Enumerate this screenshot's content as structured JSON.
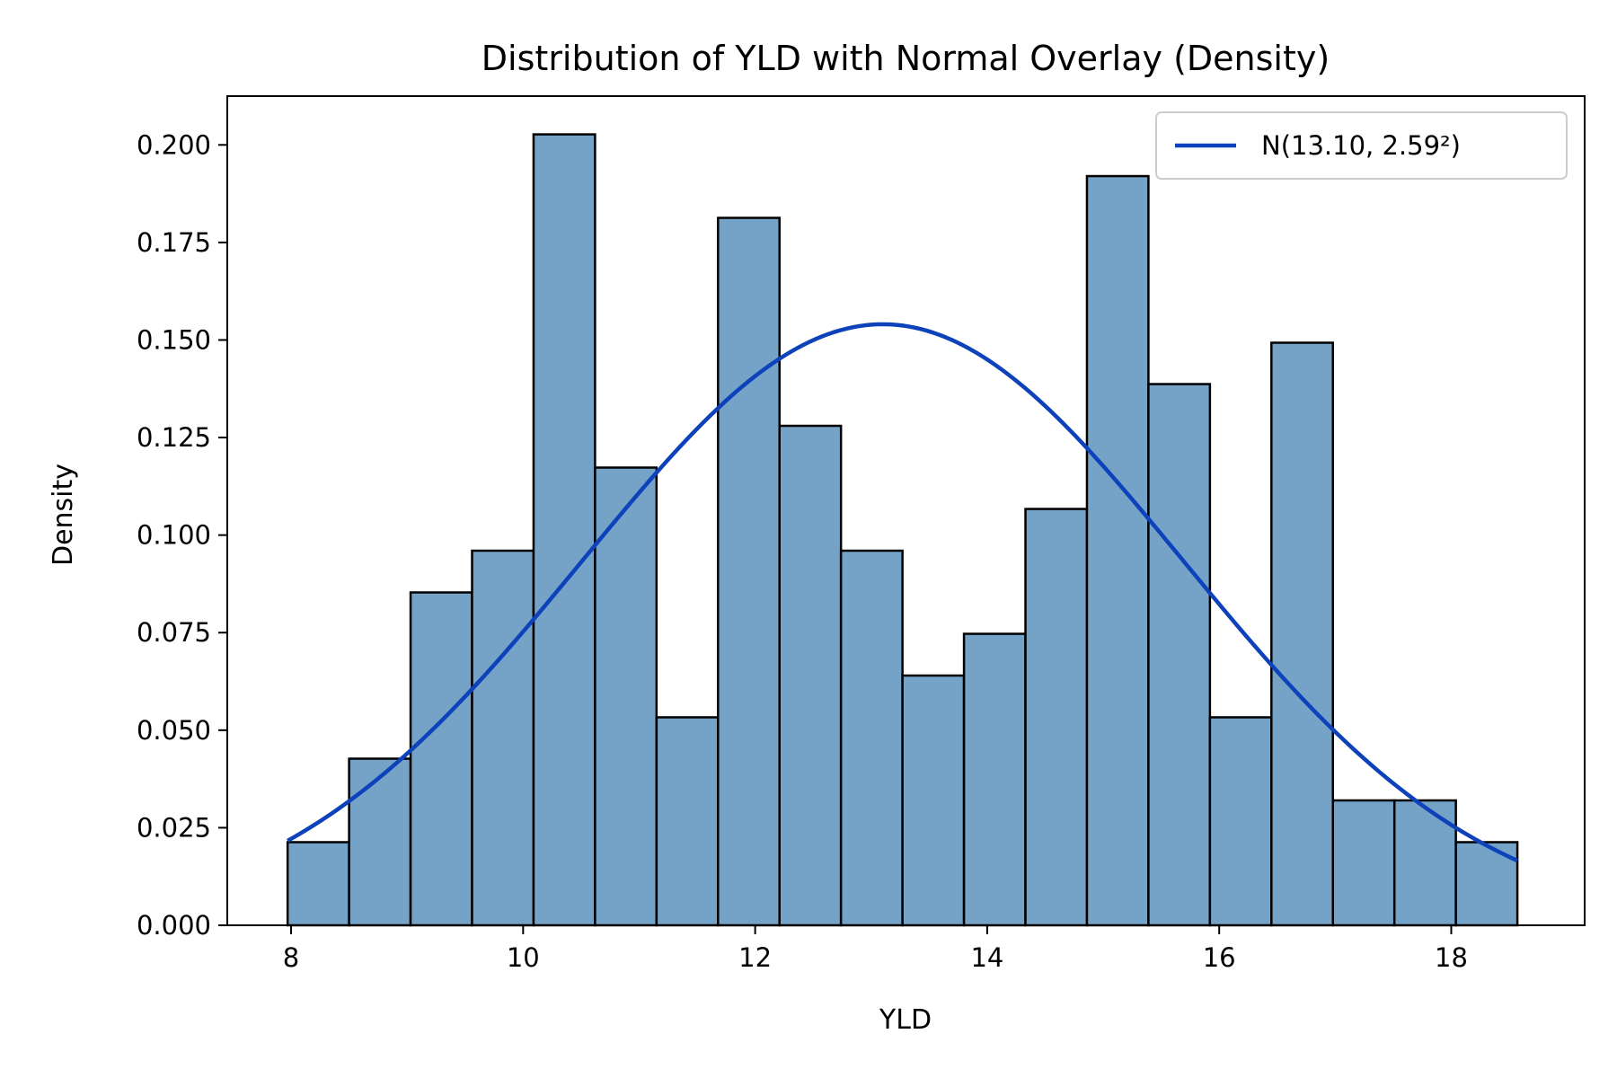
{
  "chart_data": {
    "type": "bar",
    "title": "Distribution of YLD with Normal Overlay (Density)",
    "xlabel": "YLD",
    "ylabel": "Density",
    "xlim": [
      7.45,
      19.15
    ],
    "ylim": [
      0,
      0.2125
    ],
    "xticks": [
      8,
      10,
      12,
      14,
      16,
      18
    ],
    "yticks": [
      0.0,
      0.025,
      0.05,
      0.075,
      0.1,
      0.125,
      0.15,
      0.175,
      0.2
    ],
    "ytick_labels": [
      "0.000",
      "0.025",
      "0.050",
      "0.075",
      "0.100",
      "0.125",
      "0.150",
      "0.175",
      "0.200"
    ],
    "grid": false,
    "bin_edges": [
      7.97,
      8.5,
      9.03,
      9.56,
      10.09,
      10.62,
      11.15,
      11.68,
      12.21,
      12.74,
      13.27,
      13.8,
      14.33,
      14.86,
      15.39,
      15.92,
      16.45,
      16.98,
      17.51,
      18.04,
      18.57
    ],
    "densities": [
      0.0213,
      0.0427,
      0.0853,
      0.096,
      0.2027,
      0.1173,
      0.0533,
      0.1813,
      0.128,
      0.096,
      0.064,
      0.0747,
      0.1067,
      0.192,
      0.1387,
      0.0533,
      0.1493,
      0.032,
      0.032,
      0.0213
    ],
    "bar_color": "#75A3C8",
    "edge_color": "#000000",
    "normal_fit": {
      "name": "N(13.10, 2.59²)",
      "mean": 13.1,
      "std": 2.59,
      "x_range": [
        7.97,
        18.57
      ],
      "color": "#0D42BA"
    },
    "legend_position": "top-right"
  }
}
